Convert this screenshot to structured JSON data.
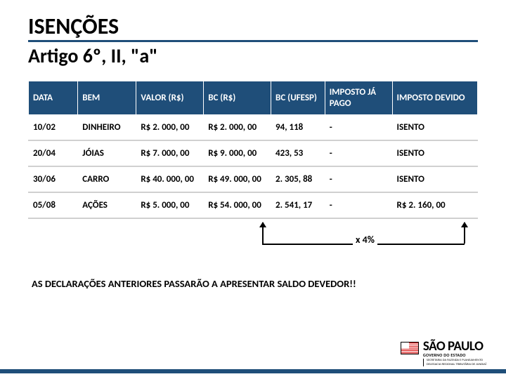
{
  "title": "ISENÇÕES",
  "subtitle": "Artigo 6º, II, \"a\"",
  "table": {
    "headers": [
      "DATA",
      "BEM",
      "VALOR (R$)",
      "BC (R$)",
      "BC (UFESP)",
      "IMPOSTO JÁ PAGO",
      "IMPOSTO DEVIDO"
    ],
    "rows": [
      [
        "10/02",
        "DINHEIRO",
        "R$ 2. 000, 00",
        "R$ 2. 000, 00",
        "94, 118",
        "-",
        "ISENTO"
      ],
      [
        "20/04",
        "JÓIAS",
        "R$ 7. 000, 00",
        "R$ 9. 000, 00",
        "423, 53",
        "-",
        "ISENTO"
      ],
      [
        "30/06",
        "CARRO",
        "R$ 40. 000, 00",
        "R$ 49. 000, 00",
        "2. 305, 88",
        "-",
        "ISENTO"
      ],
      [
        "05/08",
        "AÇÕES",
        "R$ 5. 000, 00",
        "R$ 54. 000, 00",
        "2. 541, 17",
        "-",
        "R$ 2. 160, 00"
      ]
    ],
    "col_widths": [
      "11%",
      "13%",
      "15%",
      "15%",
      "12%",
      "15%",
      "19%"
    ],
    "header_bg": "#1f4e79",
    "header_color": "#ffffff"
  },
  "annotation": {
    "label": "x 4%"
  },
  "footnote": "AS DECLARAÇÕES ANTERIORES PASSARÃO A APRESENTAR SALDO DEVEDOR!!",
  "logo": {
    "main": "SÃO PAULO",
    "sub": "GOVERNO DO ESTADO",
    "dept1": "SECRETARIA DA FAZENDA E PLANEJAMENTO",
    "dept2": "DELEGACIA REGIONAL TRIBUTÁRIA DE JUNDIAÍ"
  },
  "colors": {
    "accent": "#1f4e79"
  }
}
